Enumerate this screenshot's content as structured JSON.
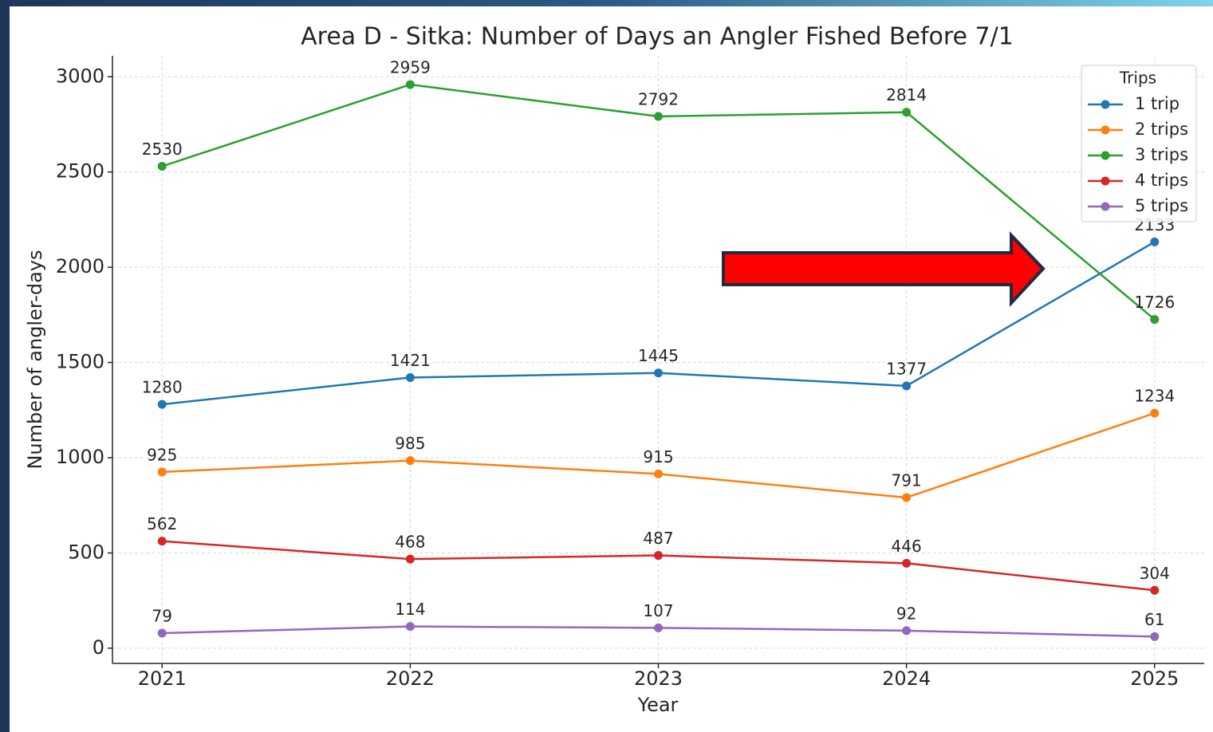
{
  "chart_data": {
    "type": "line",
    "title": "Area D - Sitka: Number of Days an Angler Fished Before 7/1",
    "x_label": "Year",
    "y_label": "Number of angler-days",
    "x": [
      2021,
      2022,
      2023,
      2024,
      2025
    ],
    "xlim": [
      2020.8,
      2025.2
    ],
    "xticks": [
      2021,
      2022,
      2023,
      2024,
      2025
    ],
    "ylim": [
      -80,
      3110
    ],
    "yticks": [
      0,
      500,
      1000,
      1500,
      2000,
      2500,
      3000
    ],
    "grid": true,
    "legend_title": "Trips",
    "legend_position": "upper right",
    "series": [
      {
        "name": "1 trip",
        "color": "#1f77b4",
        "values": [
          1280,
          1421,
          1445,
          1377,
          2133
        ]
      },
      {
        "name": "2 trips",
        "color": "#ff7f0e",
        "values": [
          925,
          985,
          915,
          791,
          1234
        ]
      },
      {
        "name": "3 trips",
        "color": "#2ca02c",
        "values": [
          2530,
          2959,
          2792,
          2814,
          1726
        ]
      },
      {
        "name": "4 trips",
        "color": "#d62728",
        "values": [
          562,
          468,
          487,
          446,
          304
        ]
      },
      {
        "name": "5 trips",
        "color": "#9467bd",
        "values": [
          79,
          114,
          107,
          92,
          61
        ]
      }
    ]
  }
}
